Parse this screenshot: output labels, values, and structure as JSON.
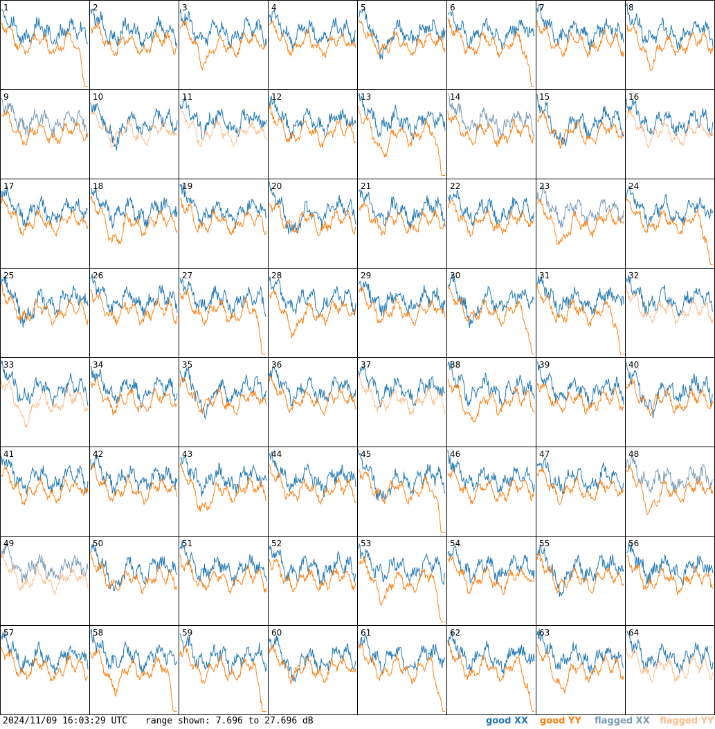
{
  "chart_data": {
    "type": "line",
    "layout": "small-multiples 8x8",
    "panels": [
      "1",
      "2",
      "3",
      "4",
      "5",
      "6",
      "7",
      "8",
      "9",
      "10",
      "11",
      "12",
      "13",
      "14",
      "15",
      "16",
      "17",
      "18",
      "19",
      "20",
      "21",
      "22",
      "23",
      "24",
      "25",
      "26",
      "27",
      "28",
      "29",
      "30",
      "31",
      "32",
      "33",
      "34",
      "35",
      "36",
      "37",
      "38",
      "39",
      "40",
      "41",
      "42",
      "43",
      "44",
      "45",
      "46",
      "47",
      "48",
      "49",
      "50",
      "51",
      "52",
      "53",
      "54",
      "55",
      "56",
      "57",
      "58",
      "59",
      "60",
      "61",
      "62",
      "63",
      "64"
    ],
    "ylim": [
      7.696,
      27.696
    ],
    "yunit": "dB",
    "series": [
      {
        "name": "good XX",
        "color": "#1f77b4"
      },
      {
        "name": "good YY",
        "color": "#ff7f0e"
      },
      {
        "name": "flagged XX",
        "color": "#7a9ab8"
      },
      {
        "name": "flagged YY",
        "color": "#ffbb88"
      }
    ]
  },
  "footer": {
    "timestamp": "2024/11/09 16:03:29 UTC",
    "range": "range shown: 7.696 to 27.696 dB"
  },
  "legend": [
    {
      "label": "good XX",
      "color": "#1f77b4"
    },
    {
      "label": "good YY",
      "color": "#ff7f0e"
    },
    {
      "label": "flagged XX",
      "color": "#7a9ab8"
    },
    {
      "label": "flagged YY",
      "color": "#ffbb88"
    }
  ]
}
